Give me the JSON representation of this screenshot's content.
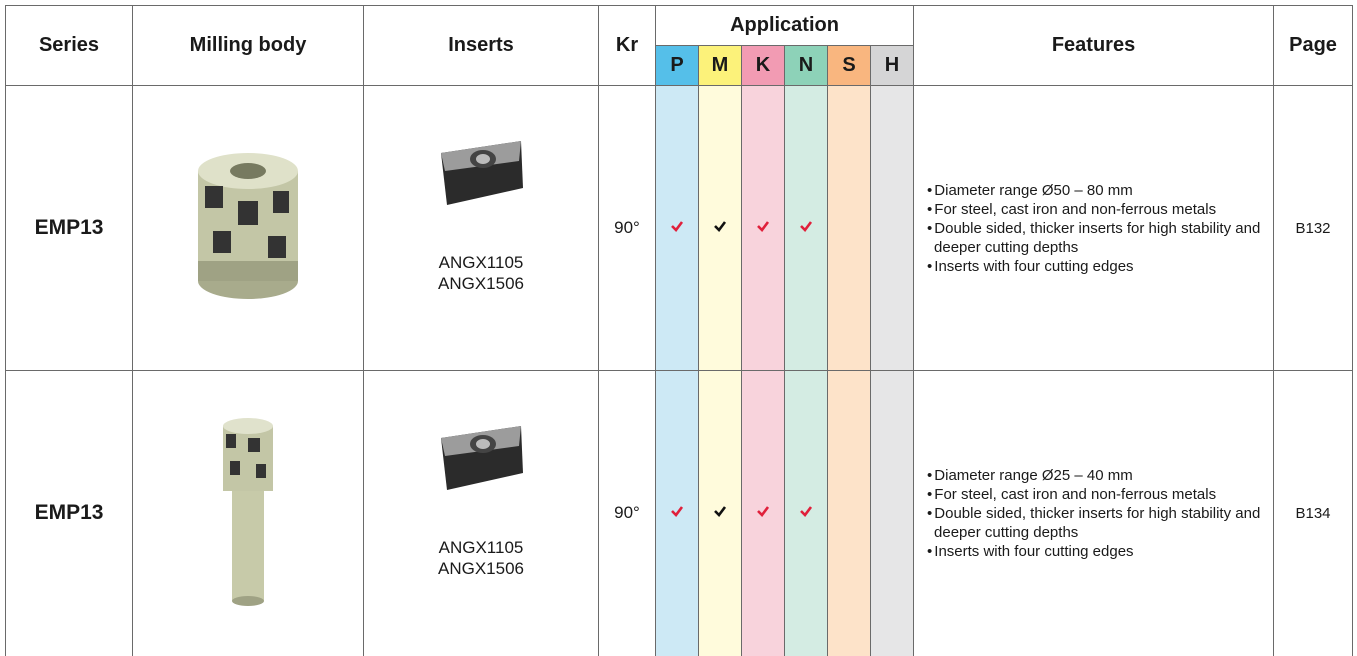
{
  "header": {
    "series": "Series",
    "milling_body": "Milling body",
    "inserts": "Inserts",
    "kr": "Kr",
    "application": "Application",
    "features": "Features",
    "page": "Page",
    "materials": [
      "P",
      "M",
      "K",
      "N",
      "S",
      "H"
    ]
  },
  "table": {
    "rows": [
      {
        "series": "EMP13",
        "inserts": [
          "ANGX1105",
          "ANGX1506"
        ],
        "kr": "90°",
        "application": [
          true,
          true,
          true,
          true,
          false,
          false
        ],
        "features": [
          "Diameter range Ø50 – 80 mm",
          "For steel, cast iron and non-ferrous metals",
          "Double sided, thicker inserts for high stability and deeper cutting depths",
          "Inserts with four cutting edges"
        ],
        "page": "B132"
      },
      {
        "series": "EMP13",
        "inserts": [
          "ANGX1105",
          "ANGX1506"
        ],
        "kr": "90°",
        "application": [
          true,
          true,
          true,
          true,
          false,
          false
        ],
        "features": [
          "Diameter range Ø25 – 40 mm",
          "For steel, cast iron and non-ferrous metals",
          "Double sided, thicker inserts for high stability and deeper cutting depths",
          "Inserts with four cutting edges"
        ],
        "page": "B134"
      }
    ]
  }
}
